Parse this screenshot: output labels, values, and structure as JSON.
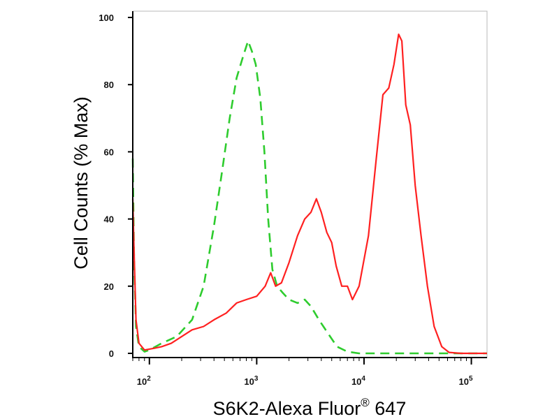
{
  "chart_data": {
    "type": "line",
    "title": "",
    "xlabel": "S6K2-Alexa Fluor",
    "xlabel_superscript": "®",
    "xlabel_suffix": " 647",
    "ylabel": "Cell Counts (% Max)",
    "x_scale": "log",
    "xlim": [
      70,
      140000
    ],
    "ylim": [
      0,
      100
    ],
    "x_ticks": [
      {
        "value": 100,
        "base": "10",
        "exp": "2"
      },
      {
        "value": 1000,
        "base": "10",
        "exp": "3"
      },
      {
        "value": 10000,
        "base": "10",
        "exp": "4"
      },
      {
        "value": 100000,
        "base": "10",
        "exp": "5"
      }
    ],
    "y_ticks": [
      {
        "value": 0,
        "label": "0"
      },
      {
        "value": 20,
        "label": "20"
      },
      {
        "value": 40,
        "label": "40"
      },
      {
        "value": 60,
        "label": "60"
      },
      {
        "value": 80,
        "label": "80"
      },
      {
        "value": 100,
        "label": "100"
      }
    ],
    "grid": false,
    "legend": "none",
    "series": [
      {
        "style": "dashed",
        "color": "#2ecc2e",
        "points": [
          [
            70,
            58
          ],
          [
            72,
            28
          ],
          [
            75,
            8
          ],
          [
            80,
            2
          ],
          [
            90,
            0.5
          ],
          [
            100,
            1
          ],
          [
            130,
            3
          ],
          [
            180,
            5
          ],
          [
            250,
            10
          ],
          [
            320,
            20
          ],
          [
            400,
            38
          ],
          [
            480,
            55
          ],
          [
            560,
            70
          ],
          [
            650,
            82
          ],
          [
            740,
            88
          ],
          [
            830,
            93
          ],
          [
            900,
            90
          ],
          [
            980,
            86
          ],
          [
            1080,
            76
          ],
          [
            1180,
            60
          ],
          [
            1280,
            40
          ],
          [
            1400,
            25
          ],
          [
            1550,
            20
          ],
          [
            1750,
            18
          ],
          [
            2000,
            16
          ],
          [
            2400,
            15
          ],
          [
            2800,
            16
          ],
          [
            3200,
            14
          ],
          [
            3800,
            10
          ],
          [
            4600,
            6
          ],
          [
            5600,
            2
          ],
          [
            7000,
            0.5
          ],
          [
            9000,
            0
          ],
          [
            20000,
            0
          ],
          [
            60000,
            0
          ],
          [
            140000,
            0
          ]
        ]
      },
      {
        "style": "solid",
        "color": "#ff2020",
        "points": [
          [
            70,
            46
          ],
          [
            72,
            30
          ],
          [
            75,
            10
          ],
          [
            80,
            3
          ],
          [
            90,
            1
          ],
          [
            110,
            1.5
          ],
          [
            130,
            2
          ],
          [
            160,
            3
          ],
          [
            200,
            5
          ],
          [
            250,
            7
          ],
          [
            320,
            8
          ],
          [
            400,
            10
          ],
          [
            520,
            12
          ],
          [
            650,
            15
          ],
          [
            800,
            16
          ],
          [
            1000,
            17
          ],
          [
            1200,
            20
          ],
          [
            1350,
            24
          ],
          [
            1500,
            20
          ],
          [
            1700,
            21
          ],
          [
            2000,
            27
          ],
          [
            2400,
            35
          ],
          [
            2800,
            40
          ],
          [
            3200,
            42
          ],
          [
            3600,
            46
          ],
          [
            4000,
            42
          ],
          [
            4500,
            36
          ],
          [
            5000,
            33
          ],
          [
            5500,
            26
          ],
          [
            6200,
            20
          ],
          [
            7000,
            20
          ],
          [
            7800,
            16
          ],
          [
            9000,
            20
          ],
          [
            11000,
            35
          ],
          [
            13000,
            58
          ],
          [
            15000,
            77
          ],
          [
            17000,
            79
          ],
          [
            19000,
            86
          ],
          [
            21000,
            95
          ],
          [
            22500,
            93
          ],
          [
            24500,
            74
          ],
          [
            27000,
            68
          ],
          [
            30000,
            50
          ],
          [
            34000,
            35
          ],
          [
            39000,
            20
          ],
          [
            45000,
            8
          ],
          [
            53000,
            2
          ],
          [
            62000,
            0.3
          ],
          [
            80000,
            0
          ],
          [
            140000,
            0
          ]
        ]
      }
    ]
  }
}
